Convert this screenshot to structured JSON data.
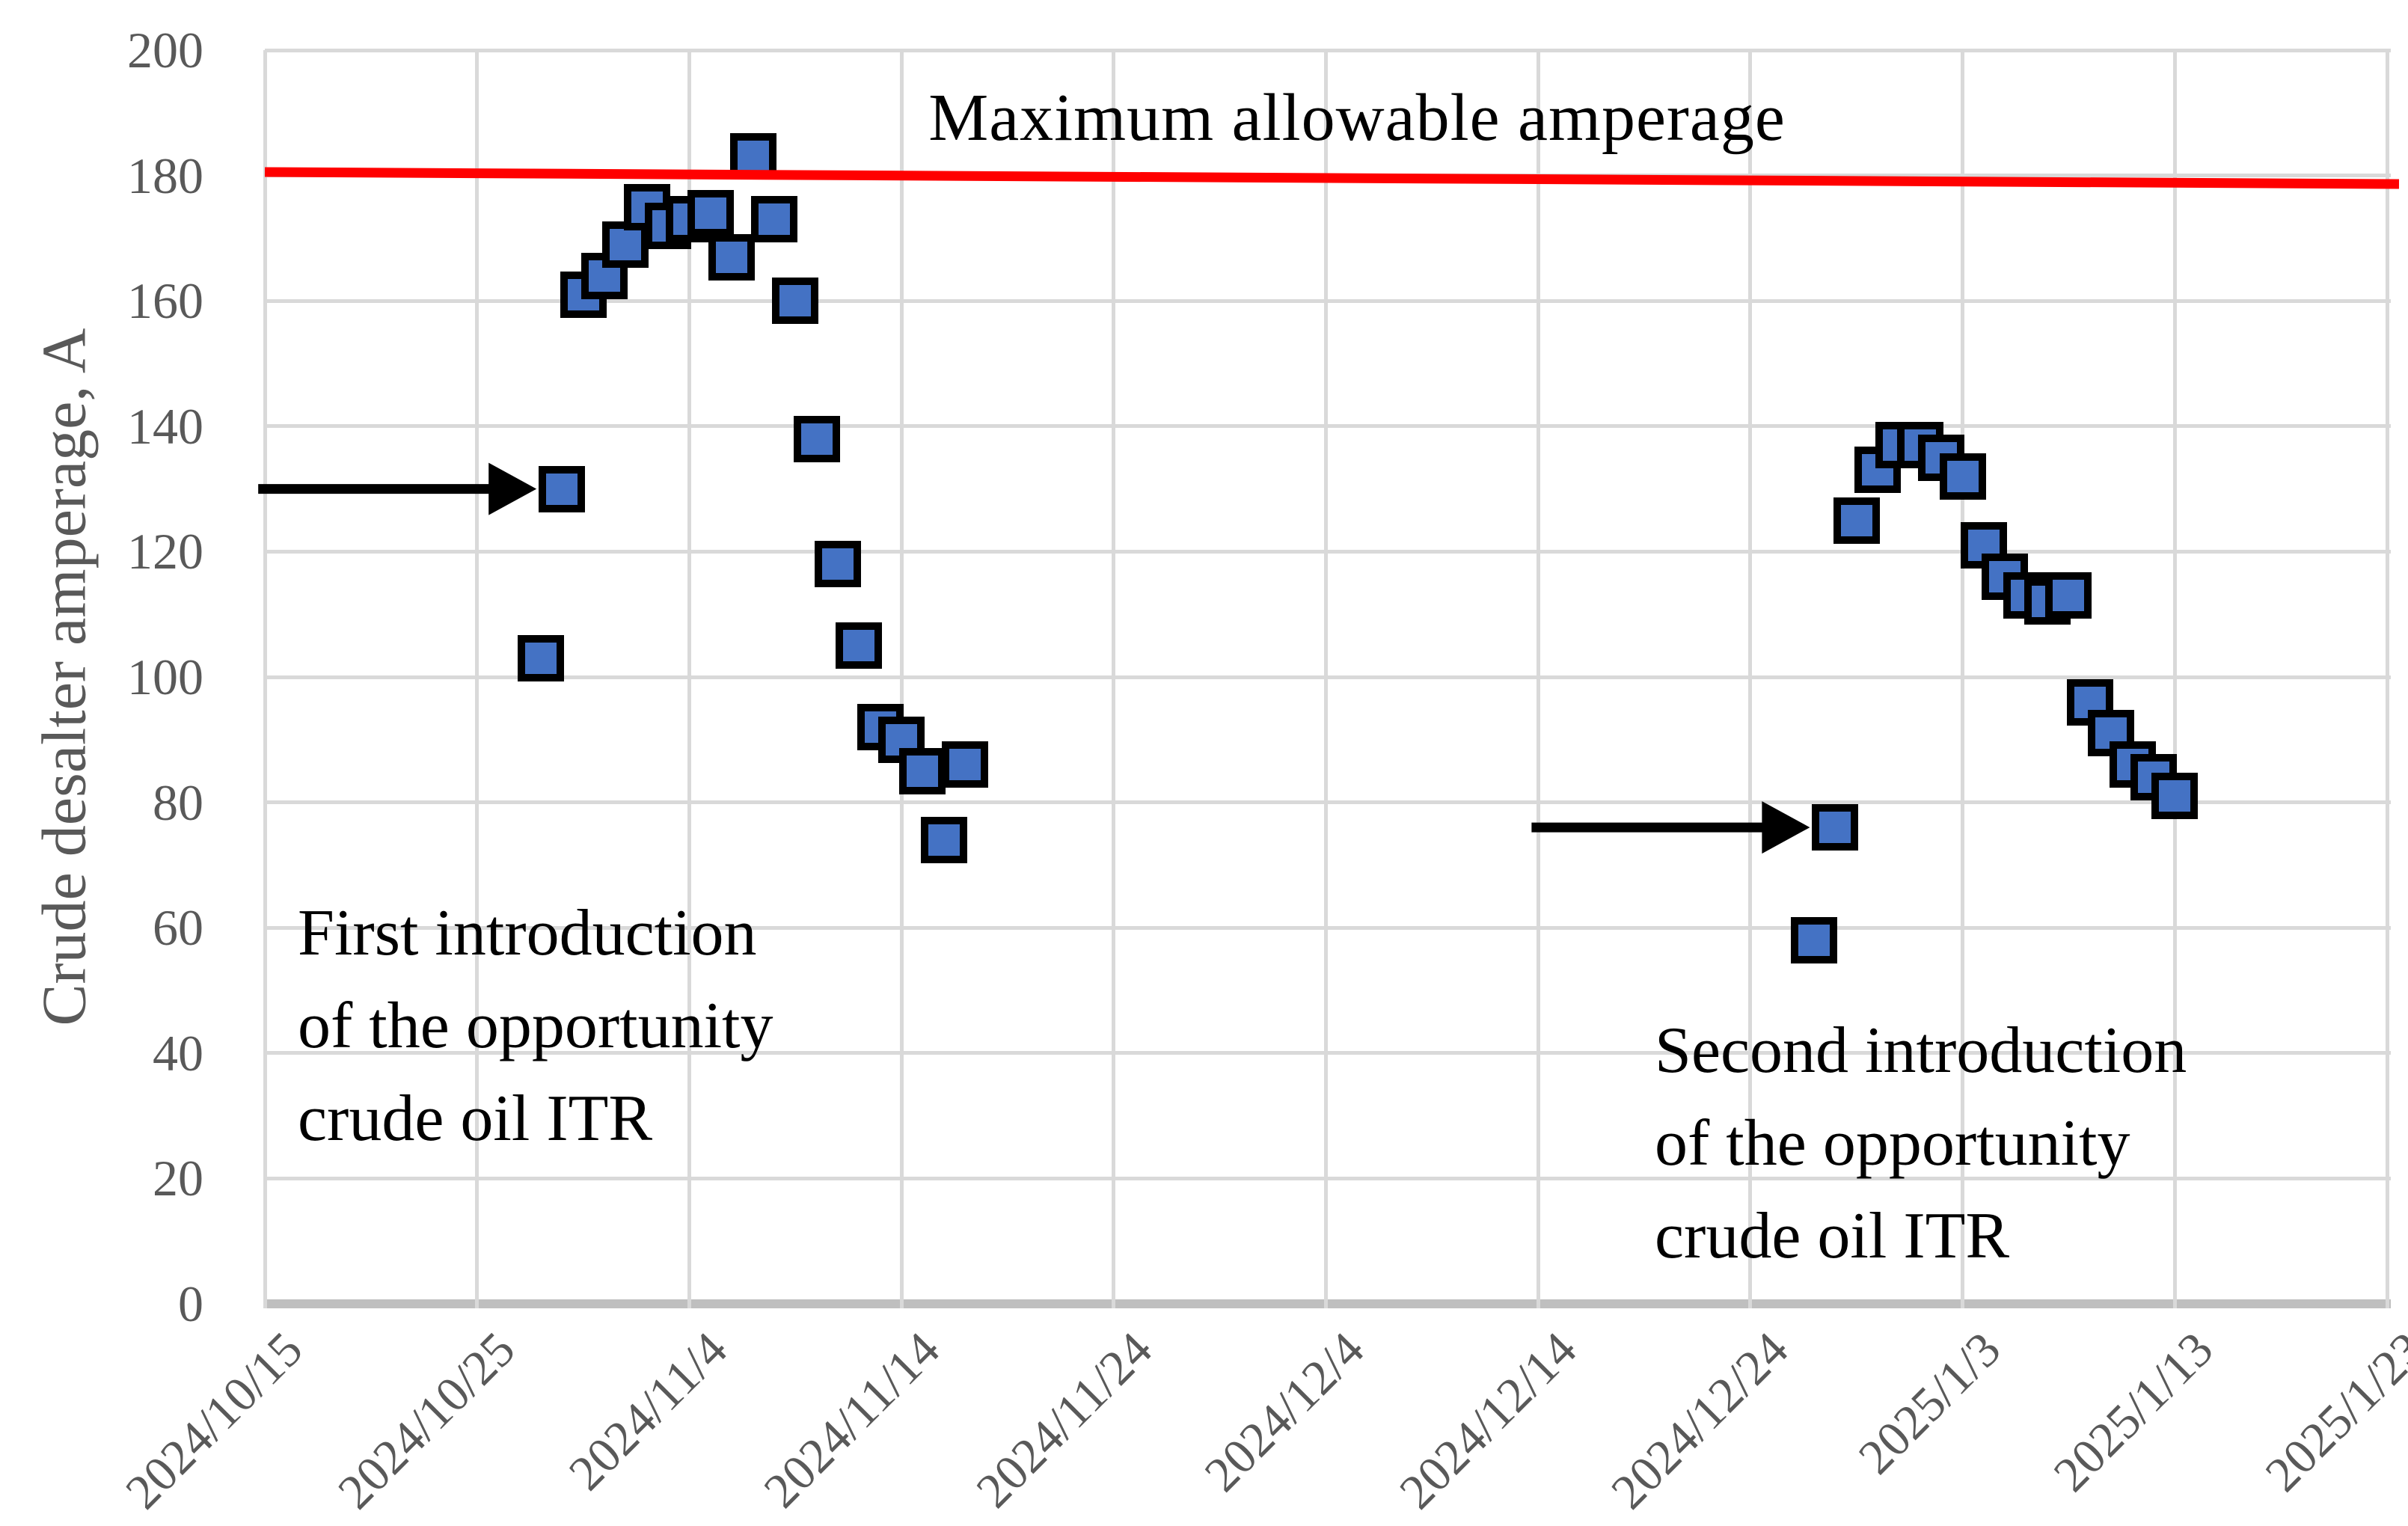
{
  "chart_data": {
    "type": "scatter",
    "title": "",
    "xlabel": "",
    "ylabel": "Crude desalter amperage, A",
    "ylim": [
      0,
      200
    ],
    "y_tick_step": 20,
    "y_tick_labels": [
      "0",
      "20",
      "40",
      "60",
      "80",
      "100",
      "120",
      "140",
      "160",
      "180",
      "200"
    ],
    "x_ticks": [
      "2024/10/15",
      "2024/10/25",
      "2024/11/4",
      "2024/11/14",
      "2024/11/24",
      "2024/12/4",
      "2024/12/14",
      "2024/12/24",
      "2025/1/3",
      "2025/1/13",
      "2025/1/23"
    ],
    "grid": true,
    "legend_position": "none",
    "reference_line": {
      "label": "Maximum allowable amperage",
      "value": 180,
      "color": "#ff0000"
    },
    "series": [
      {
        "name": "Crude desalter amperage",
        "marker": "square",
        "color": "#4472c4",
        "points": [
          [
            "2024/10/28",
            103
          ],
          [
            "2024/10/29",
            130
          ],
          [
            "2024/10/30",
            161
          ],
          [
            "2024/10/31",
            164
          ],
          [
            "2024/11/1",
            169
          ],
          [
            "2024/11/2",
            175
          ],
          [
            "2024/11/3",
            172
          ],
          [
            "2024/11/4",
            173
          ],
          [
            "2024/11/5",
            174
          ],
          [
            "2024/11/6",
            167
          ],
          [
            "2024/11/7",
            183
          ],
          [
            "2024/11/8",
            173
          ],
          [
            "2024/11/9",
            160
          ],
          [
            "2024/11/10",
            138
          ],
          [
            "2024/11/11",
            118
          ],
          [
            "2024/11/12",
            105
          ],
          [
            "2024/11/13",
            92
          ],
          [
            "2024/11/14",
            90
          ],
          [
            "2024/11/15",
            85
          ],
          [
            "2024/11/16",
            74
          ],
          [
            "2024/11/17",
            86
          ],
          [
            "2024/12/27",
            58
          ],
          [
            "2024/12/28",
            76
          ],
          [
            "2024/12/29",
            125
          ],
          [
            "2024/12/30",
            133
          ],
          [
            "2024/12/31",
            137
          ],
          [
            "2025/1/1",
            137
          ],
          [
            "2025/1/2",
            135
          ],
          [
            "2025/1/3",
            132
          ],
          [
            "2025/1/4",
            121
          ],
          [
            "2025/1/5",
            116
          ],
          [
            "2025/1/6",
            113
          ],
          [
            "2025/1/7",
            112
          ],
          [
            "2025/1/8",
            113
          ],
          [
            "2025/1/9",
            96
          ],
          [
            "2025/1/10",
            91
          ],
          [
            "2025/1/11",
            86
          ],
          [
            "2025/1/12",
            84
          ],
          [
            "2025/1/13",
            81
          ]
        ]
      }
    ],
    "annotations": [
      {
        "lines": [
          "First introduction",
          "of the opportunity",
          "crude oil ITR"
        ],
        "arrow_to": {
          "date": "2024/10/29",
          "value": 130
        }
      },
      {
        "lines": [
          "Second introduction",
          "of the opportunity",
          "crude oil ITR"
        ],
        "arrow_to": {
          "date": "2024/12/28",
          "value": 76
        }
      }
    ]
  },
  "colors": {
    "marker_fill": "#4472c4",
    "marker_border": "#000000",
    "reference_line": "#ff0000",
    "gridline": "#d9d9d9",
    "axis_line": "#bfbfbf",
    "tick_text": "#595959",
    "annotation_text": "#000000",
    "background": "#ffffff"
  }
}
